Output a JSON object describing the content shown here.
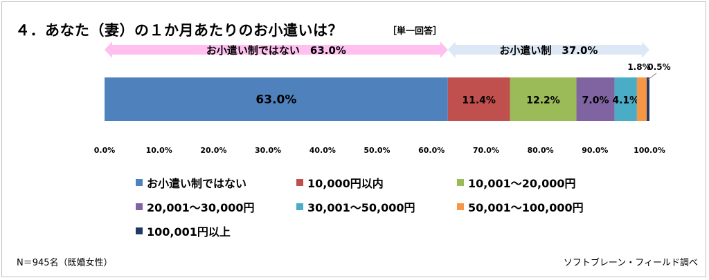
{
  "title": "４．あなた（妻）の１か月あたりのお小遣いは？",
  "subtitle": "［単一回答］",
  "footnote": "N＝945名（既婚女性）",
  "source": "ソフトブレーン・フィールド調べ",
  "brackets": [
    {
      "label": "お小遣い制ではない　63.0%",
      "from": 0,
      "to": 63.0,
      "color": "#ffc0f0"
    },
    {
      "label": "お小遣い制　37.0%",
      "from": 63.0,
      "to": 100.0,
      "color": "#dce8f5"
    }
  ],
  "chart_data": {
    "type": "bar",
    "orientation": "horizontal-stacked-100",
    "xlim": [
      0,
      100
    ],
    "x_ticks": [
      "0.0%",
      "10.0%",
      "20.0%",
      "30.0%",
      "40.0%",
      "50.0%",
      "60.0%",
      "70.0%",
      "80.0%",
      "90.0%",
      "100.0%"
    ],
    "series": [
      {
        "name": "お小遣い制ではない",
        "value": 63.0,
        "label": "63.0%",
        "color": "#4f81bd"
      },
      {
        "name": "10,000円以内",
        "value": 11.4,
        "label": "11.4%",
        "color": "#c0504d"
      },
      {
        "name": "10,001～20,000円",
        "value": 12.2,
        "label": "12.2%",
        "color": "#9bbb59"
      },
      {
        "name": "20,001～30,000円",
        "value": 7.0,
        "label": "7.0%",
        "color": "#8064a2"
      },
      {
        "name": "30,001～50,000円",
        "value": 4.1,
        "label": "4.1%",
        "color": "#4bacc6"
      },
      {
        "name": "50,001～100,000円",
        "value": 1.8,
        "label": "1.8%",
        "color": "#f79646"
      },
      {
        "name": "100,001円以上",
        "value": 0.5,
        "label": "0.5%",
        "color": "#1f3864"
      }
    ]
  }
}
